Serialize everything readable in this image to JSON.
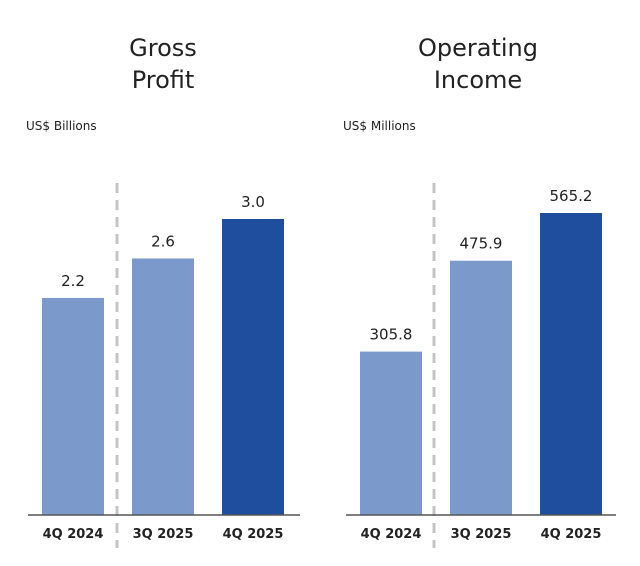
{
  "chart_data": [
    {
      "type": "bar",
      "title_lines": [
        "Gross",
        "Profit"
      ],
      "unit_label": "US$ Billions",
      "categories": [
        "4Q 2024",
        "3Q 2025",
        "4Q 2025"
      ],
      "values": [
        2.2,
        2.6,
        3.0
      ],
      "value_labels": [
        "2.2",
        "2.6",
        "3.0"
      ],
      "ylim": [
        0,
        3.0
      ],
      "bar_colors": [
        "#7b9acb",
        "#7b9acb",
        "#1f4e9e"
      ],
      "divider_after_category": 0
    },
    {
      "type": "bar",
      "title_lines": [
        "Operating",
        "Income"
      ],
      "unit_label": "US$ Millions",
      "categories": [
        "4Q 2024",
        "3Q 2025",
        "4Q 2025"
      ],
      "values": [
        305.8,
        475.9,
        565.2
      ],
      "value_labels": [
        "305.8",
        "475.9",
        "565.2"
      ],
      "ylim": [
        0,
        565.2
      ],
      "bar_colors": [
        "#7b9acb",
        "#7b9acb",
        "#1f4e9e"
      ],
      "divider_after_category": 0
    }
  ]
}
